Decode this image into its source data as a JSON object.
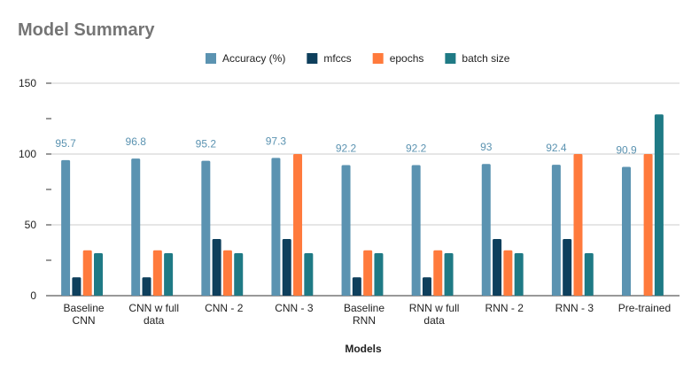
{
  "chart_data": {
    "type": "bar",
    "title": "Model Summary",
    "xlabel": "Models",
    "ylabel": "",
    "ylim": [
      0,
      150
    ],
    "yticks": [
      0,
      50,
      100,
      150
    ],
    "grid": true,
    "legend_position": "top",
    "categories": [
      "Baseline CNN",
      "CNN w full data",
      "CNN - 2",
      "CNN - 3",
      "Baseline RNN",
      "RNN w full data",
      "RNN - 2",
      "RNN - 3",
      "Pre-trained"
    ],
    "category_lines": [
      [
        "Baseline",
        "CNN"
      ],
      [
        "CNN w full",
        "data"
      ],
      [
        "CNN - 2"
      ],
      [
        "CNN - 3"
      ],
      [
        "Baseline",
        "RNN"
      ],
      [
        "RNN w full",
        "data"
      ],
      [
        "RNN - 2"
      ],
      [
        "RNN - 3"
      ],
      [
        "Pre-trained"
      ]
    ],
    "series": [
      {
        "name": "Accuracy (%)",
        "color": "#5b93b1",
        "values": [
          95.7,
          96.8,
          95.2,
          97.3,
          92.2,
          92.2,
          93,
          92.4,
          90.9
        ],
        "data_labels": [
          "95.7",
          "96.8",
          "95.2",
          "97.3",
          "92.2",
          "92.2",
          "93",
          "92.4",
          "90.9"
        ]
      },
      {
        "name": "mfccs",
        "color": "#0e3f5c",
        "values": [
          13,
          13,
          40,
          40,
          13,
          13,
          40,
          40,
          null
        ]
      },
      {
        "name": "epochs",
        "color": "#ff7a3c",
        "values": [
          32,
          32,
          32,
          100,
          32,
          32,
          32,
          100,
          100
        ]
      },
      {
        "name": "batch size",
        "color": "#1f7a85",
        "values": [
          30,
          30,
          30,
          30,
          30,
          30,
          30,
          30,
          128
        ]
      }
    ]
  }
}
